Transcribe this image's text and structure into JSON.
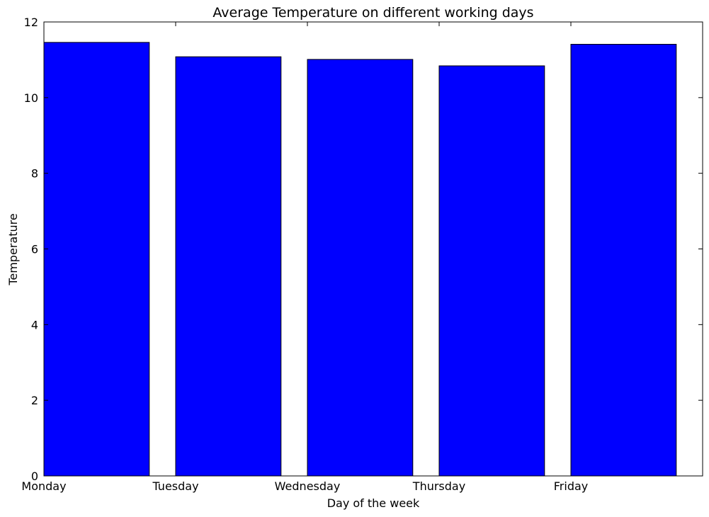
{
  "chart_data": {
    "type": "bar",
    "title": "Average Temperature on different working days",
    "xlabel": "Day of the week",
    "ylabel": "Temperature",
    "categories": [
      "Monday",
      "Tuesday",
      "Wednesday",
      "Thursday",
      "Friday"
    ],
    "values": [
      11.46,
      11.08,
      11.01,
      10.84,
      11.41
    ],
    "ylim": [
      0,
      12
    ],
    "yticks": [
      0,
      2,
      4,
      6,
      8,
      10,
      12
    ],
    "xlim": [
      0,
      5
    ],
    "bar_width": 0.8,
    "grid": false,
    "colors": {
      "bar_fill": "#0000ff",
      "bar_edge": "#000000",
      "axes": "#000000"
    }
  }
}
